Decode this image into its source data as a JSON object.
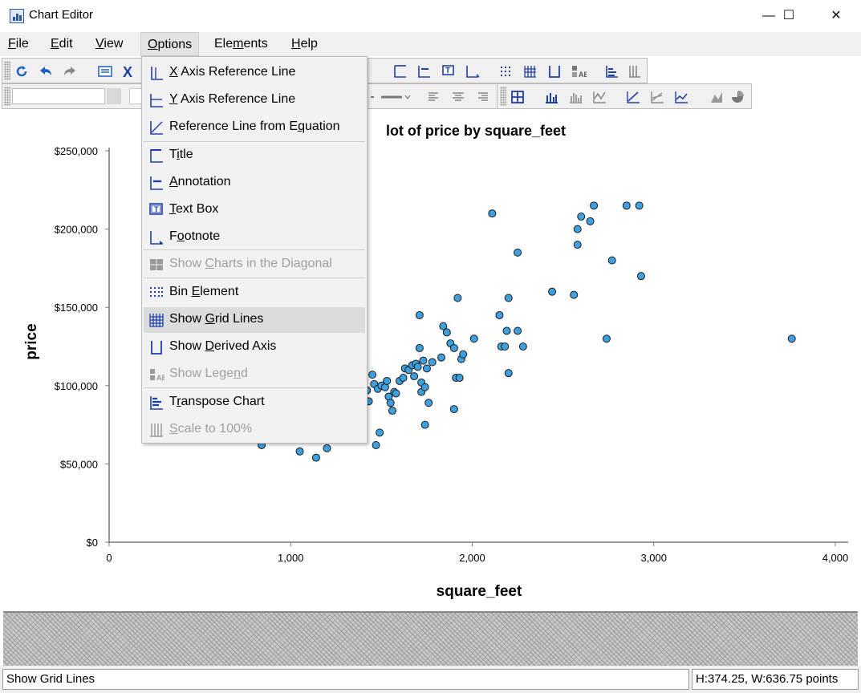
{
  "window": {
    "title": "Chart Editor",
    "min": "—",
    "max": "☐",
    "close": "✕"
  },
  "menubar": [
    {
      "label": "File",
      "u": "F",
      "rest": "ile"
    },
    {
      "label": "Edit",
      "u": "E",
      "rest": "dit"
    },
    {
      "label": "View",
      "u": "V",
      "rest": "iew"
    },
    {
      "label": "Options",
      "u": "O",
      "rest": "ptions"
    },
    {
      "label": "Elements",
      "pre": "Ele",
      "u": "m",
      "rest": "ents"
    },
    {
      "label": "Help",
      "u": "H",
      "rest": "elp"
    }
  ],
  "options_menu": {
    "items": [
      {
        "pre": "",
        "u": "X",
        "post": " Axis Reference Line",
        "icon": "x-axis-reference-line-icon",
        "enabled": true
      },
      {
        "pre": "",
        "u": "Y",
        "post": " Axis Reference Line",
        "icon": "y-axis-reference-line-icon",
        "enabled": true
      },
      {
        "pre": "Reference Line from E",
        "u": "q",
        "post": "uation",
        "icon": "reference-line-equation-icon",
        "enabled": true
      },
      {
        "pre": "T",
        "u": "i",
        "post": "tle",
        "icon": "title-icon",
        "enabled": true
      },
      {
        "pre": "",
        "u": "A",
        "post": "nnotation",
        "icon": "annotation-icon",
        "enabled": true
      },
      {
        "pre": "",
        "u": "T",
        "post": "ext Box",
        "icon": "text-box-icon",
        "enabled": true
      },
      {
        "pre": "F",
        "u": "o",
        "post": "otnote",
        "icon": "footnote-icon",
        "enabled": true
      },
      {
        "pre": "Show ",
        "u": "C",
        "post": "harts in the Diagonal",
        "icon": "diagonal-charts-icon",
        "enabled": false
      },
      {
        "pre": "Bin ",
        "u": "E",
        "post": "lement",
        "icon": "bin-element-icon",
        "enabled": true
      },
      {
        "pre": "Show ",
        "u": "G",
        "post": "rid Lines",
        "icon": "grid-lines-icon",
        "enabled": true,
        "highlighted": true
      },
      {
        "pre": "Show ",
        "u": "D",
        "post": "erived Axis",
        "icon": "derived-axis-icon",
        "enabled": true
      },
      {
        "pre": "Show Lege",
        "u": "n",
        "post": "d",
        "icon": "legend-icon",
        "enabled": false
      },
      {
        "pre": "T",
        "u": "r",
        "post": "anspose Chart",
        "icon": "transpose-chart-icon",
        "enabled": true
      },
      {
        "pre": "",
        "u": "S",
        "post": "cale to 100%",
        "icon": "scale-100-icon",
        "enabled": false
      }
    ]
  },
  "status": {
    "message": "Show Grid Lines",
    "size": "H:374.25, W:636.75 points"
  },
  "chart_data": {
    "type": "scatter",
    "title": "Scatter Plot of price by square_feet",
    "title_visible": "lot of price by square_feet",
    "xlabel": "square_feet",
    "ylabel": "price",
    "xlim": [
      0,
      4000
    ],
    "ylim": [
      0,
      250000
    ],
    "x_ticks": [
      "0",
      "1,000",
      "2,000",
      "3,000",
      "4,000"
    ],
    "x_tick_values": [
      0,
      1000,
      2000,
      3000,
      4000
    ],
    "y_ticks": [
      "$0",
      "$50,000",
      "$100,000",
      "$150,000",
      "$200,000",
      "$250,000"
    ],
    "y_tick_values": [
      0,
      50000,
      100000,
      150000,
      200000,
      250000
    ],
    "grid": false,
    "marker_color": "#3fa0e0",
    "marker_edge": "#1a1a1a",
    "points": [
      [
        840,
        62000
      ],
      [
        1050,
        58000
      ],
      [
        1140,
        54000
      ],
      [
        1200,
        60000
      ],
      [
        1420,
        97000
      ],
      [
        1430,
        90000
      ],
      [
        1450,
        107000
      ],
      [
        1460,
        101000
      ],
      [
        1470,
        62000
      ],
      [
        1480,
        98000
      ],
      [
        1490,
        70000
      ],
      [
        1500,
        100000
      ],
      [
        1520,
        99000
      ],
      [
        1530,
        103000
      ],
      [
        1540,
        93000
      ],
      [
        1550,
        89000
      ],
      [
        1560,
        84000
      ],
      [
        1570,
        96000
      ],
      [
        1580,
        95000
      ],
      [
        1600,
        103000
      ],
      [
        1620,
        105000
      ],
      [
        1630,
        111000
      ],
      [
        1650,
        110000
      ],
      [
        1670,
        113000
      ],
      [
        1680,
        106000
      ],
      [
        1690,
        114000
      ],
      [
        1700,
        112000
      ],
      [
        1710,
        124000
      ],
      [
        1710,
        145000
      ],
      [
        1720,
        102000
      ],
      [
        1720,
        96000
      ],
      [
        1730,
        116000
      ],
      [
        1740,
        99000
      ],
      [
        1740,
        75000
      ],
      [
        1750,
        111000
      ],
      [
        1760,
        89000
      ],
      [
        1780,
        115000
      ],
      [
        1830,
        118000
      ],
      [
        1840,
        138000
      ],
      [
        1860,
        134000
      ],
      [
        1880,
        127000
      ],
      [
        1900,
        124000
      ],
      [
        1900,
        85000
      ],
      [
        1910,
        105000
      ],
      [
        1920,
        156000
      ],
      [
        1930,
        105000
      ],
      [
        1940,
        117000
      ],
      [
        1950,
        120000
      ],
      [
        2010,
        130000
      ],
      [
        2110,
        210000
      ],
      [
        2150,
        145000
      ],
      [
        2160,
        125000
      ],
      [
        2180,
        125000
      ],
      [
        2190,
        135000
      ],
      [
        2200,
        108000
      ],
      [
        2200,
        156000
      ],
      [
        2250,
        135000
      ],
      [
        2250,
        185000
      ],
      [
        2280,
        125000
      ],
      [
        2440,
        160000
      ],
      [
        2560,
        158000
      ],
      [
        2580,
        200000
      ],
      [
        2580,
        190000
      ],
      [
        2600,
        208000
      ],
      [
        2650,
        205000
      ],
      [
        2670,
        215000
      ],
      [
        2740,
        130000
      ],
      [
        2770,
        180000
      ],
      [
        2850,
        215000
      ],
      [
        2920,
        215000
      ],
      [
        2930,
        170000
      ],
      [
        3760,
        130000
      ]
    ]
  }
}
